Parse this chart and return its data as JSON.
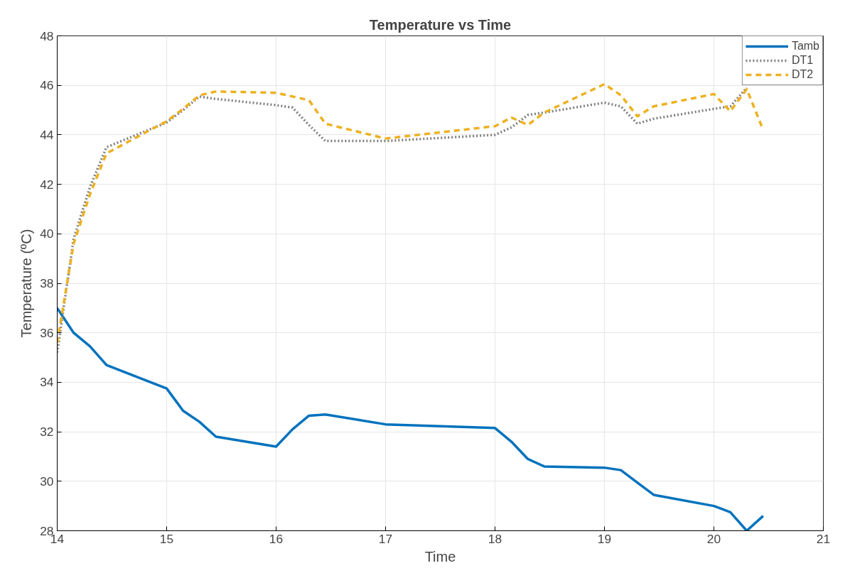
{
  "chart_data": {
    "type": "line",
    "title": "Temperature vs Time",
    "xlabel": "Time",
    "ylabel": "Temperature (ºC)",
    "x": [
      14,
      14.15,
      14.3,
      14.45,
      15,
      15.15,
      15.3,
      15.45,
      16,
      16.15,
      16.3,
      16.45,
      17,
      18,
      18.15,
      18.3,
      18.45,
      19,
      19.15,
      19.3,
      19.45,
      20,
      20.15,
      20.3,
      20.45
    ],
    "series": [
      {
        "name": "Tamb",
        "color": "#0072bd",
        "line_style": "solid",
        "values": [
          37,
          36,
          35.45,
          34.7,
          33.75,
          32.85,
          32.4,
          31.8,
          31.4,
          32.1,
          32.65,
          32.7,
          32.3,
          32.15,
          31.6,
          30.9,
          30.6,
          30.55,
          30.45,
          29.95,
          29.45,
          29.0,
          28.75,
          28.0,
          28.6
        ]
      },
      {
        "name": "DT1",
        "color": "#7f7f7f",
        "line_style": "dotted",
        "values": [
          35.2,
          39.8,
          41.9,
          43.5,
          44.5,
          45.0,
          45.55,
          45.45,
          45.2,
          45.1,
          44.4,
          43.75,
          43.75,
          44.0,
          44.3,
          44.8,
          44.9,
          45.3,
          45.15,
          44.45,
          44.65,
          45.05,
          45.15,
          45.9,
          null
        ]
      },
      {
        "name": "DT2",
        "color": "#edb120",
        "line_style": "dashed",
        "values": [
          35.6,
          39.6,
          41.6,
          43.25,
          44.55,
          45.05,
          45.6,
          45.75,
          45.7,
          45.55,
          45.4,
          44.45,
          43.85,
          44.35,
          44.7,
          44.4,
          44.9,
          46.05,
          45.6,
          44.75,
          45.15,
          45.65,
          44.95,
          45.85,
          44.2
        ]
      }
    ],
    "xlim": [
      14,
      21
    ],
    "xticks": [
      14,
      15,
      16,
      17,
      18,
      19,
      20,
      21
    ],
    "ylim": [
      28,
      48
    ],
    "yticks": [
      28,
      30,
      32,
      34,
      36,
      38,
      40,
      42,
      44,
      46,
      48
    ],
    "grid": true,
    "legend": "top right"
  }
}
